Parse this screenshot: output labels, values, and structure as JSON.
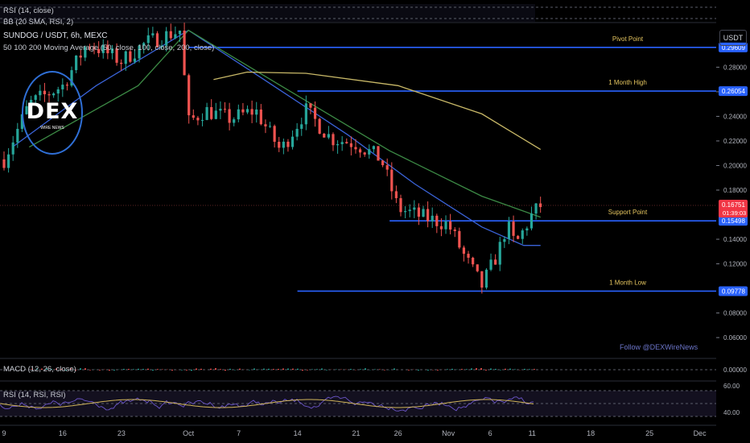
{
  "header": {
    "symbol_line": "SUNDOG / USDT, 6h, MEXC",
    "ma_line": "50 100 200 Moving Average (50, close, 100, close, 200, close)",
    "rsi_line": "RSI (14, close)",
    "bb_line": "BB (20 SMA, RSI, 2)",
    "currency": "USDT"
  },
  "logo": {
    "text": "DEX",
    "subtext": "WIRE NEWS"
  },
  "watermark": "Follow @DEXWireNews",
  "macd_label": "MACD (12, 26, close)",
  "rsi_label": "RSI (14, RSI, RSI)",
  "chart_data": {
    "type": "candlestick",
    "title": "SUNDOG / USDT, 6h, MEXC",
    "xlabel": "",
    "ylabel": "",
    "x_ticks": [
      "9",
      "16",
      "23",
      "Oct",
      "7",
      "14",
      "21",
      "26",
      "Nov",
      "6",
      "11",
      "18",
      "25",
      "Dec"
    ],
    "y_ticks": [
      "0.28000",
      "0.26000",
      "0.24000",
      "0.22000",
      "0.20000",
      "0.18000",
      "0.14000",
      "0.12000",
      "0.08000",
      "0.06000"
    ],
    "ylim": [
      0.045,
      0.315
    ],
    "grid": false,
    "price_series": [
      {
        "date": "Sep 9",
        "v": 0.205
      },
      {
        "date": "Sep 12",
        "v": 0.25
      },
      {
        "date": "Sep 16",
        "v": 0.265
      },
      {
        "date": "Sep 19",
        "v": 0.3
      },
      {
        "date": "Sep 23",
        "v": 0.285
      },
      {
        "date": "Sep 26",
        "v": 0.3
      },
      {
        "date": "Sep 30",
        "v": 0.31
      },
      {
        "date": "Oct 1",
        "v": 0.235
      },
      {
        "date": "Oct 3",
        "v": 0.245
      },
      {
        "date": "Oct 6",
        "v": 0.238
      },
      {
        "date": "Oct 9",
        "v": 0.245
      },
      {
        "date": "Oct 12",
        "v": 0.212
      },
      {
        "date": "Oct 15",
        "v": 0.245
      },
      {
        "date": "Oct 18",
        "v": 0.222
      },
      {
        "date": "Oct 21",
        "v": 0.218
      },
      {
        "date": "Oct 24",
        "v": 0.205
      },
      {
        "date": "Oct 26",
        "v": 0.165
      },
      {
        "date": "Oct 29",
        "v": 0.158
      },
      {
        "date": "Nov 1",
        "v": 0.152
      },
      {
        "date": "Nov 3",
        "v": 0.125
      },
      {
        "date": "Nov 5",
        "v": 0.102
      },
      {
        "date": "Nov 7",
        "v": 0.13
      },
      {
        "date": "Nov 8",
        "v": 0.152
      },
      {
        "date": "Nov 9",
        "v": 0.135
      },
      {
        "date": "Nov 11",
        "v": 0.16
      },
      {
        "date": "Nov 12",
        "v": 0.1675
      }
    ],
    "series": [
      {
        "name": "MA 50",
        "color": "#3a63d8",
        "points": [
          {
            "date": "Sep 10",
            "v": 0.215
          },
          {
            "date": "Sep 20",
            "v": 0.265
          },
          {
            "date": "Oct 1",
            "v": 0.31
          },
          {
            "date": "Oct 10",
            "v": 0.27
          },
          {
            "date": "Oct 20",
            "v": 0.225
          },
          {
            "date": "Oct 28",
            "v": 0.185
          },
          {
            "date": "Nov 5",
            "v": 0.15
          },
          {
            "date": "Nov 10",
            "v": 0.135
          },
          {
            "date": "Nov 12",
            "v": 0.135
          }
        ]
      },
      {
        "name": "MA 100",
        "color": "#3c8a45",
        "points": [
          {
            "date": "Sep 12",
            "v": 0.215
          },
          {
            "date": "Sep 25",
            "v": 0.265
          },
          {
            "date": "Oct 1",
            "v": 0.31
          },
          {
            "date": "Oct 12",
            "v": 0.265
          },
          {
            "date": "Oct 25",
            "v": 0.212
          },
          {
            "date": "Nov 5",
            "v": 0.175
          },
          {
            "date": "Nov 12",
            "v": 0.158
          }
        ]
      },
      {
        "name": "MA 200",
        "color": "#c9b968",
        "points": [
          {
            "date": "Oct 4",
            "v": 0.27
          },
          {
            "date": "Oct 8",
            "v": 0.276
          },
          {
            "date": "Oct 15",
            "v": 0.275
          },
          {
            "date": "Oct 26",
            "v": 0.265
          },
          {
            "date": "Nov 5",
            "v": 0.242
          },
          {
            "date": "Nov 12",
            "v": 0.213
          }
        ]
      }
    ],
    "levels": [
      {
        "label": "Pivot Point",
        "value": 0.29609,
        "tag": "0.29609",
        "from": "Oct 1"
      },
      {
        "label": "1 Month High",
        "value": 0.26054,
        "tag": "0.26054",
        "from": "Oct 14"
      },
      {
        "label": "Support Point",
        "value": 0.15498,
        "tag": "0.15498",
        "from": "Oct 25"
      },
      {
        "label": "1 Month Low",
        "value": 0.09778,
        "tag": "0.09778",
        "from": "Oct 14"
      }
    ],
    "current_price": {
      "value": 0.16751,
      "tag": "0.16751",
      "countdown": "01:39:03"
    },
    "macd": {
      "y_tick": "0.00000",
      "zero": 0
    },
    "rsi": {
      "y_ticks": [
        "60.00",
        "40.00"
      ]
    }
  }
}
